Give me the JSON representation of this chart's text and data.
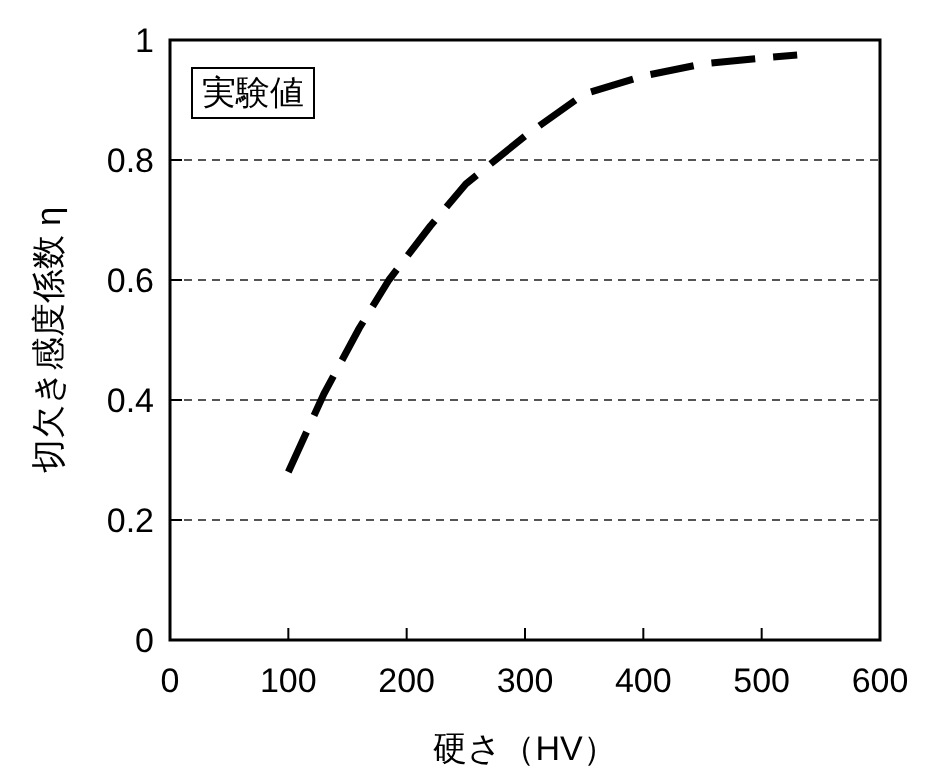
{
  "chart_data": {
    "type": "line",
    "xlabel": "硬さ（HV）",
    "ylabel": "切欠き感度係数 η",
    "annotations": [
      "実験値"
    ],
    "x": [
      100,
      130,
      160,
      185,
      220,
      250,
      275,
      300,
      350,
      400,
      450,
      500,
      530
    ],
    "series": [
      {
        "color": "#000000",
        "values": [
          0.28,
          0.41,
          0.52,
          0.6,
          0.69,
          0.76,
          0.8,
          0.84,
          0.91,
          0.94,
          0.96,
          0.97,
          0.975
        ]
      }
    ],
    "line_style": "dashed",
    "marker": "none",
    "xlim": [
      0,
      600
    ],
    "xticks": [
      0,
      100,
      200,
      300,
      400,
      500,
      600
    ],
    "ylim": [
      0,
      1
    ],
    "yticks": [
      0,
      {
        "value": 0.2,
        "label": "0.2"
      },
      {
        "value": 0.4,
        "label": "0.4"
      },
      {
        "value": 0.6,
        "label": "0.6"
      },
      {
        "value": 0.8,
        "label": "0.8"
      },
      1
    ],
    "grid": "y"
  }
}
